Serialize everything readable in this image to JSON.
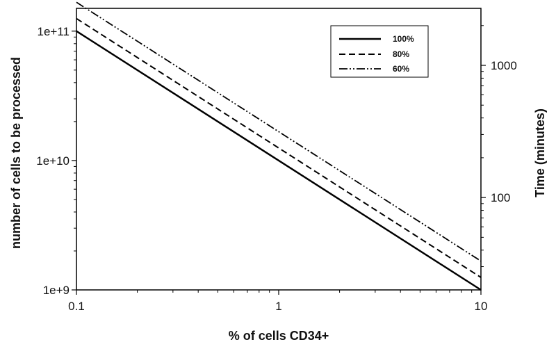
{
  "chart_data": {
    "type": "line",
    "title": "",
    "xlabel": "% of cells CD34+",
    "ylabel_left": "number of cells to be processed",
    "ylabel_right": "Time (minutes)",
    "x_scale": "log",
    "y_left_scale": "log",
    "y_right_scale": "log",
    "xlim": [
      0.1,
      10
    ],
    "ylim_left": [
      1000000000.0,
      150000000000.0
    ],
    "ylim_right": [
      20,
      2700
    ],
    "x_ticks": [
      {
        "value": 0.1,
        "label": "0.1"
      },
      {
        "value": 1,
        "label": "1"
      },
      {
        "value": 10,
        "label": "10"
      }
    ],
    "y_left_ticks": [
      {
        "value": 1000000000.0,
        "label": "1e+9"
      },
      {
        "value": 10000000000.0,
        "label": "1e+10"
      },
      {
        "value": 100000000000.0,
        "label": "1e+11"
      }
    ],
    "y_right_ticks": [
      {
        "value": 100,
        "label": "100"
      },
      {
        "value": 1000,
        "label": "1000"
      }
    ],
    "grid": false,
    "legend_position": "top-right",
    "series": [
      {
        "name": "100%",
        "dash": "solid",
        "x": [
          0.1,
          10
        ],
        "y": [
          100000000000.0,
          1000000000.0
        ]
      },
      {
        "name": "80%",
        "dash": "dashed",
        "x": [
          0.1,
          10
        ],
        "y": [
          125000000000.0,
          1250000000.0
        ]
      },
      {
        "name": "60%",
        "dash": "dashdot",
        "x": [
          0.1,
          10
        ],
        "y": [
          167000000000.0,
          1670000000.0
        ]
      }
    ]
  }
}
